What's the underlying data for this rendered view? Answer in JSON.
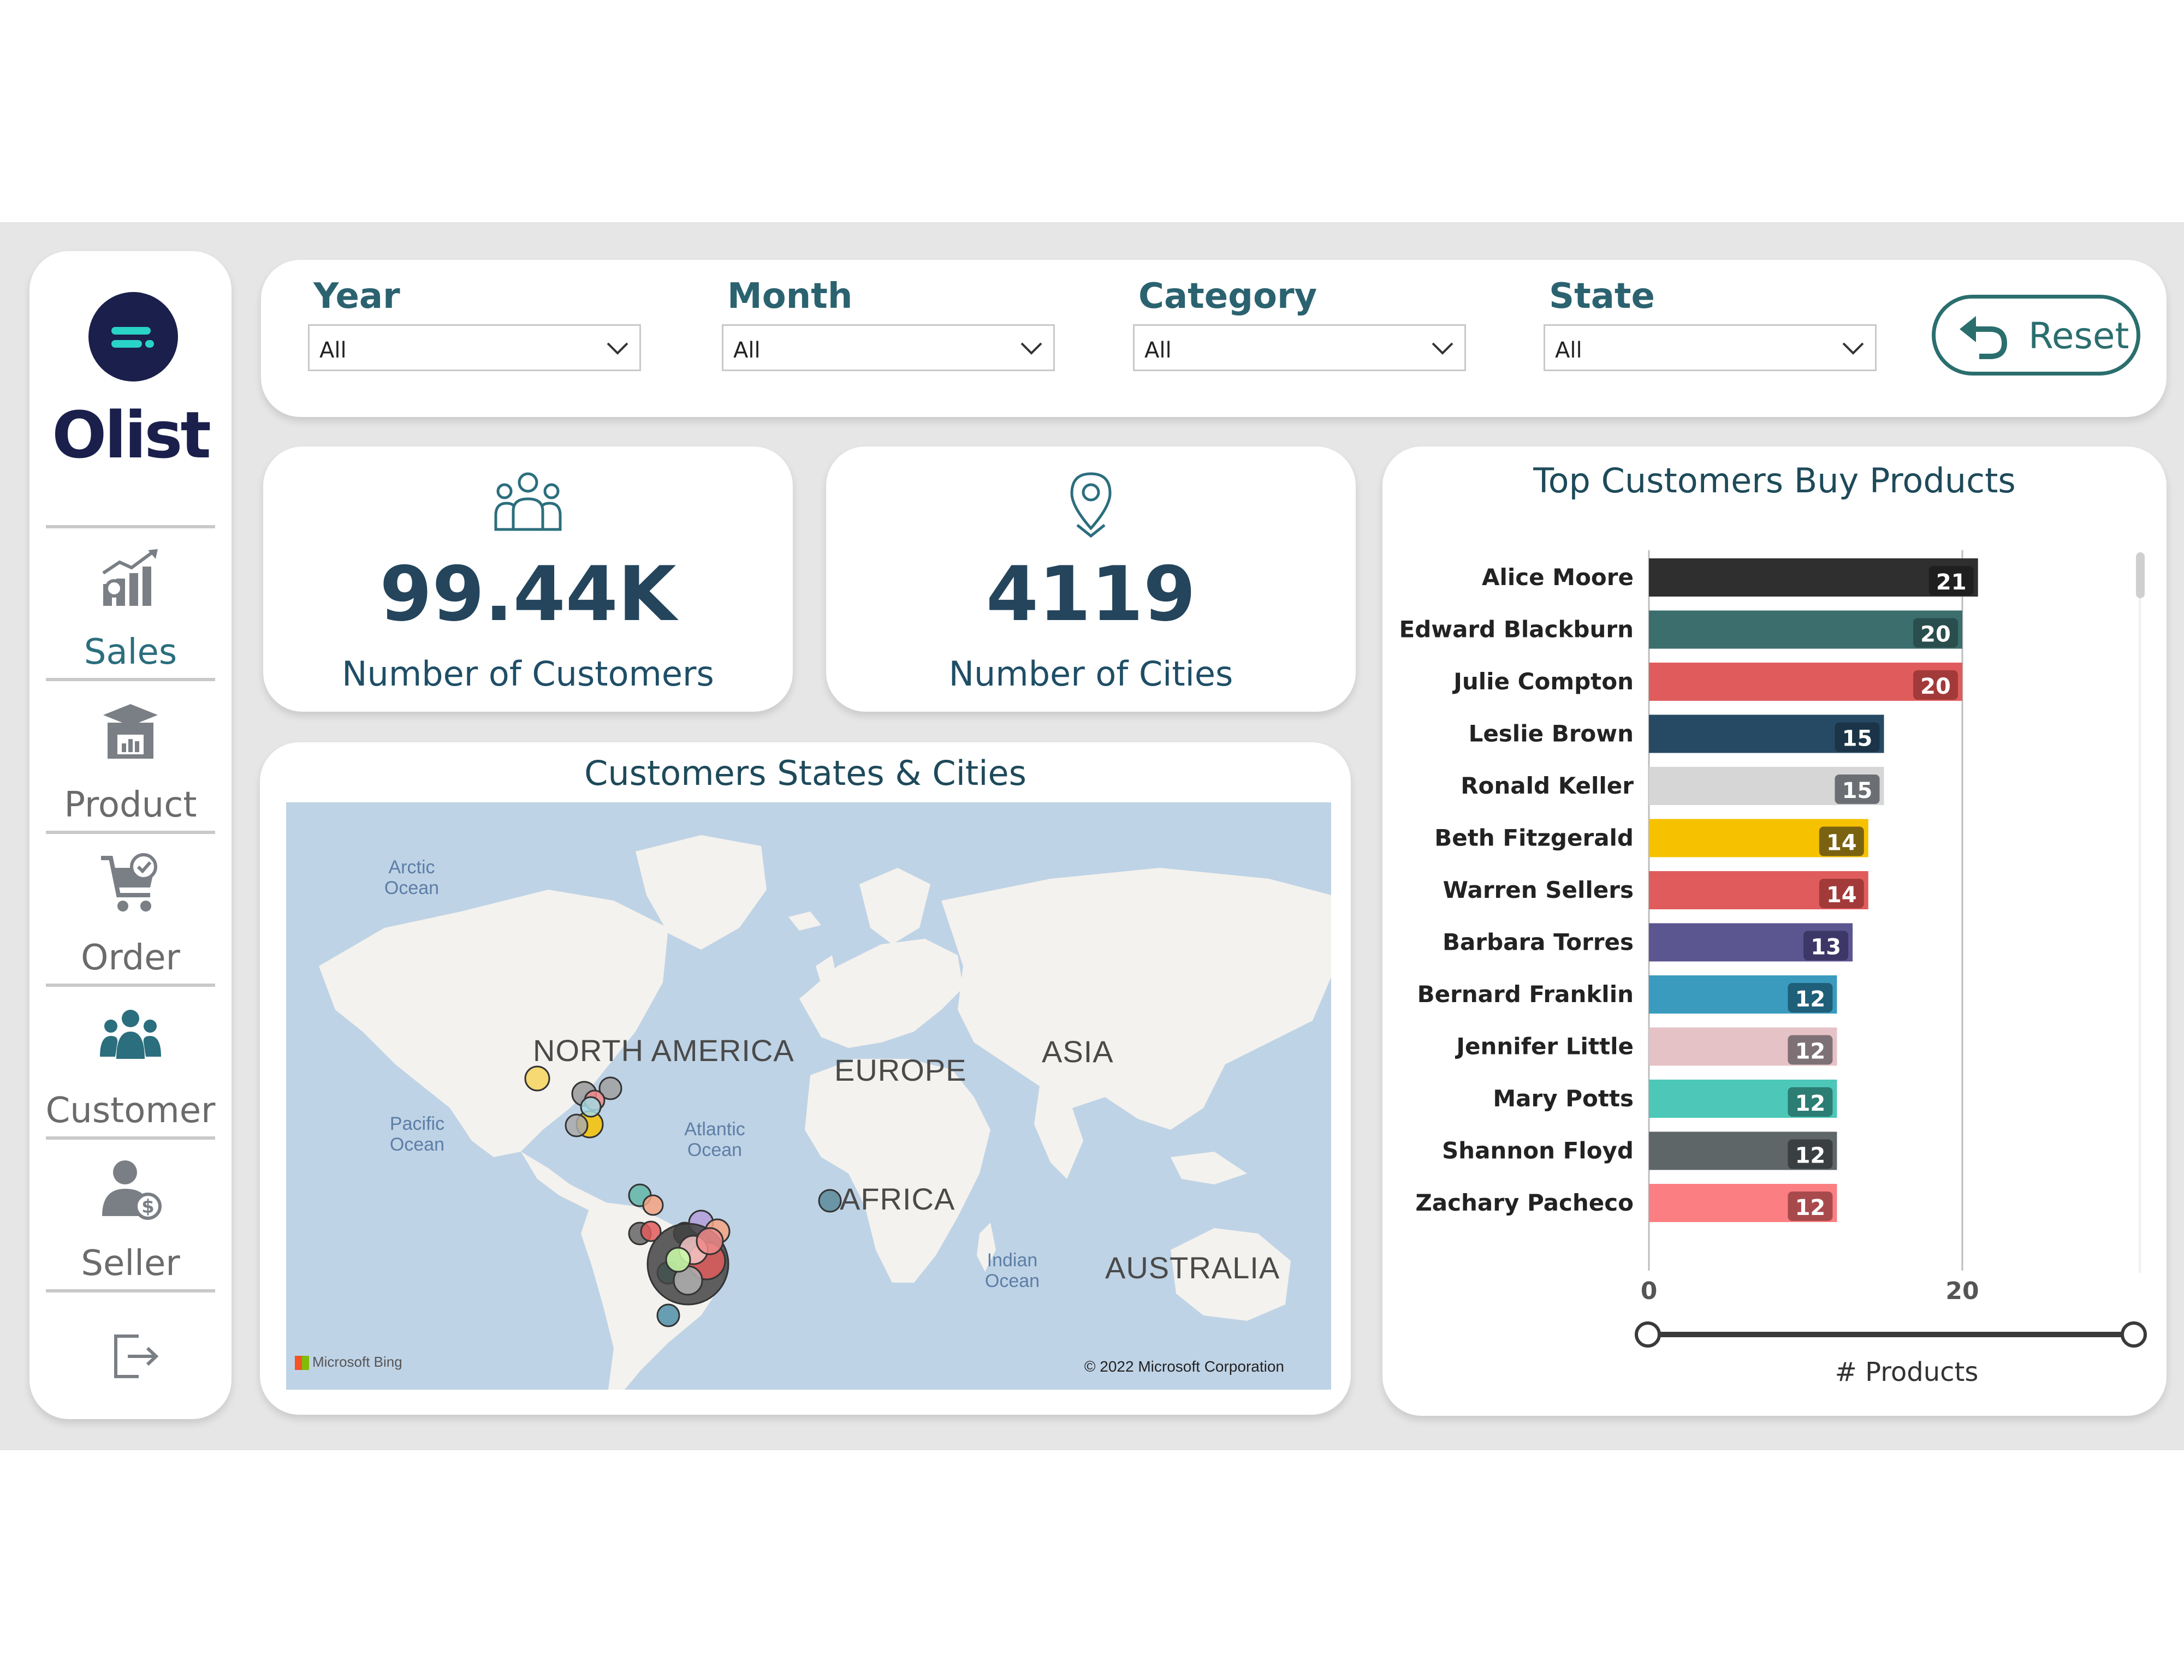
{
  "sidebar": {
    "logo_text": "Olist",
    "items": [
      {
        "label": "Sales",
        "icon": "sales-chart-icon",
        "active": true
      },
      {
        "label": "Product",
        "icon": "product-box-icon",
        "active": false
      },
      {
        "label": "Order",
        "icon": "cart-check-icon",
        "active": false
      },
      {
        "label": "Customer",
        "icon": "customer-group-icon",
        "active": true
      },
      {
        "label": "Seller",
        "icon": "seller-dollar-icon",
        "active": false
      }
    ],
    "logout_icon": "logout-icon"
  },
  "filters": [
    {
      "title": "Year",
      "value": "All"
    },
    {
      "title": "Month",
      "value": "All"
    },
    {
      "title": "Category",
      "value": "All"
    },
    {
      "title": "State",
      "value": "All"
    }
  ],
  "reset_label": "Reset",
  "kpis": {
    "customers": {
      "value": "99.44K",
      "label": "Number of Customers",
      "icon": "people-group-icon"
    },
    "cities": {
      "value": "4119",
      "label": "Number of Cities",
      "icon": "location-pin-icon"
    }
  },
  "map": {
    "title": "Customers States & Cities",
    "continents": [
      "NORTH AMERICA",
      "EUROPE",
      "ASIA",
      "AFRICA",
      "AUSTRALIA"
    ],
    "oceans": [
      "Arctic Ocean",
      "Pacific Ocean",
      "Atlantic Ocean",
      "Indian Ocean"
    ],
    "provider": "Microsoft Bing",
    "copyright": "© 2022 Microsoft Corporation"
  },
  "chart_data": {
    "type": "bar",
    "orientation": "horizontal",
    "title": "Top Customers Buy Products",
    "xlabel": "# Products",
    "ylabel": "",
    "xlim": [
      0,
      25
    ],
    "xticks": [
      0,
      20
    ],
    "categories": [
      "Alice Moore",
      "Edward Blackburn",
      "Julie Compton",
      "Leslie Brown",
      "Ronald Keller",
      "Beth Fitzgerald",
      "Warren Sellers",
      "Barbara Torres",
      "Bernard Franklin",
      "Jennifer Little",
      "Mary Potts",
      "Shannon Floyd",
      "Zachary Pacheco"
    ],
    "values": [
      21,
      20,
      20,
      15,
      15,
      14,
      14,
      13,
      12,
      12,
      12,
      12,
      12
    ],
    "colors": [
      "#2f2f2f",
      "#3c6e6e",
      "#e05c5c",
      "#264a63",
      "#d6d6d6",
      "#f6c200",
      "#e05c5c",
      "#5b5590",
      "#3a9bbf",
      "#e5c2c6",
      "#4cc7b8",
      "#5e6668",
      "#fb7f82"
    ],
    "label_badge_colors": [
      "#1f1f1f",
      "#2a4d4d",
      "#a33a3a",
      "#1b3447",
      "#6b6f74",
      "#7a6210",
      "#a33a3a",
      "#3c3766",
      "#1f5f7a",
      "#7e7175",
      "#2c7d73",
      "#3a4042",
      "#a84a4c"
    ]
  }
}
